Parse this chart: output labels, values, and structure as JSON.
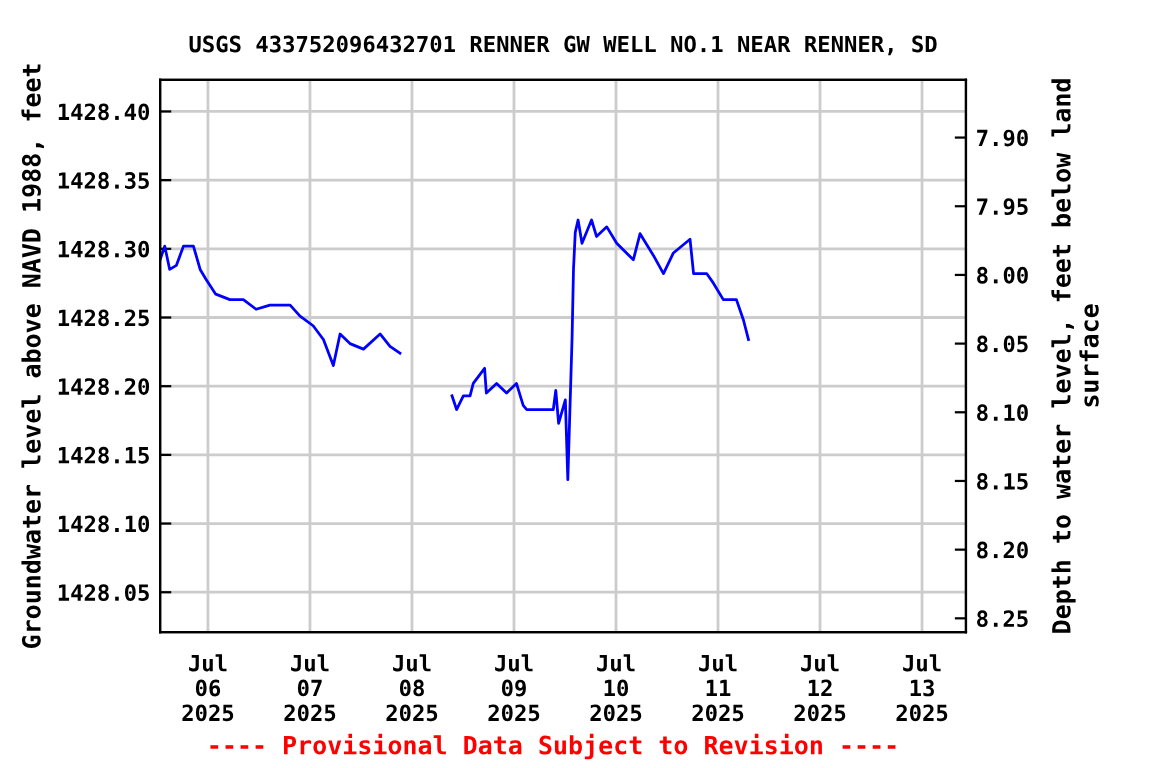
{
  "chart_data": {
    "type": "line",
    "title": "USGS 433752096432701 RENNER GW WELL NO.1 NEAR RENNER, SD",
    "ylabel": "Groundwater level above NAVD 1988, feet",
    "y2label": "Depth to water level, feet below land\nsurface",
    "annotations": [
      "---- Provisional Data Subject to Revision ----"
    ],
    "x": [
      "2025-07-05T12:45",
      "2025-07-05T13:50",
      "2025-07-05T15:00",
      "2025-07-05T16:35",
      "2025-07-05T18:15",
      "2025-07-05T20:35",
      "2025-07-05T22:10",
      "2025-07-05T23:30",
      "2025-07-06T01:50",
      "2025-07-06T05:10",
      "2025-07-06T08:20",
      "2025-07-06T11:20",
      "2025-07-06T14:35",
      "2025-07-06T19:20",
      "2025-07-06T21:40",
      "2025-07-07T00:45",
      "2025-07-07T03:10",
      "2025-07-07T05:30",
      "2025-07-07T07:05",
      "2025-07-07T09:25",
      "2025-07-07T12:35",
      "2025-07-07T16:30",
      "2025-07-07T18:50",
      "2025-07-07T21:10",
      "2025-07-08T03:00",
      "2025-07-08T09:25",
      "2025-07-08T10:30",
      "2025-07-08T12:05",
      "2025-07-08T13:40",
      "2025-07-08T14:25",
      "2025-07-08T17:05",
      "2025-07-08T17:30",
      "2025-07-08T19:55",
      "2025-07-08T22:15",
      "2025-07-09T00:35",
      "2025-07-09T02:10",
      "2025-07-09T03:00",
      "2025-07-09T09:15",
      "2025-07-09T09:50",
      "2025-07-09T10:30",
      "2025-07-09T12:05",
      "2025-07-09T12:40",
      "2025-07-09T13:40",
      "2025-07-09T14:00",
      "2025-07-09T14:25",
      "2025-07-09T15:05",
      "2025-07-09T16:00",
      "2025-07-09T18:15",
      "2025-07-09T19:25",
      "2025-07-09T21:50",
      "2025-07-10T00:10",
      "2025-07-10T04:05",
      "2025-07-10T05:40",
      "2025-07-10T08:50",
      "2025-07-10T11:10",
      "2025-07-10T13:30",
      "2025-07-10T17:25",
      "2025-07-10T18:15",
      "2025-07-10T21:20",
      "2025-07-10T22:55",
      "2025-07-11T01:15",
      "2025-07-11T04:20",
      "2025-07-11T06:00",
      "2025-07-11T07:10"
    ],
    "series": [
      {
        "color": "#0000ff",
        "values": [
          1428.292,
          1428.302,
          1428.285,
          1428.288,
          1428.302,
          1428.302,
          1428.285,
          1428.278,
          1428.267,
          1428.263,
          1428.263,
          1428.256,
          1428.259,
          1428.259,
          1428.251,
          1428.244,
          1428.234,
          1428.215,
          1428.238,
          1428.231,
          1428.227,
          1428.238,
          1428.229,
          1428.224,
          null,
          1428.193,
          1428.183,
          1428.193,
          1428.193,
          1428.202,
          1428.213,
          1428.195,
          1428.202,
          1428.195,
          1428.202,
          1428.186,
          1428.183,
          1428.183,
          1428.197,
          1428.173,
          1428.19,
          1428.132,
          1428.235,
          1428.285,
          1428.312,
          1428.321,
          1428.304,
          1428.321,
          1428.309,
          1428.316,
          1428.304,
          1428.292,
          1428.311,
          1428.295,
          1428.282,
          1428.297,
          1428.307,
          1428.282,
          1428.282,
          1428.275,
          1428.263,
          1428.263,
          1428.248,
          1428.234
        ]
      }
    ],
    "xlim": [
      "2025-07-05T12:45",
      "2025-07-13T10:20"
    ],
    "xticks": [
      {
        "value": "2025-07-06",
        "label": "Jul\n06\n2025"
      },
      {
        "value": "2025-07-07",
        "label": "Jul\n07\n2025"
      },
      {
        "value": "2025-07-08",
        "label": "Jul\n08\n2025"
      },
      {
        "value": "2025-07-09",
        "label": "Jul\n09\n2025"
      },
      {
        "value": "2025-07-10",
        "label": "Jul\n10\n2025"
      },
      {
        "value": "2025-07-11",
        "label": "Jul\n11\n2025"
      },
      {
        "value": "2025-07-12",
        "label": "Jul\n12\n2025"
      },
      {
        "value": "2025-07-13",
        "label": "Jul\n13\n2025"
      }
    ],
    "ylim": [
      1428.021,
      1428.423
    ],
    "yticks": [
      {
        "value": 1428.05,
        "label": "1428.05"
      },
      {
        "value": 1428.1,
        "label": "1428.10"
      },
      {
        "value": 1428.15,
        "label": "1428.15"
      },
      {
        "value": 1428.2,
        "label": "1428.20"
      },
      {
        "value": 1428.25,
        "label": "1428.25"
      },
      {
        "value": 1428.3,
        "label": "1428.30"
      },
      {
        "value": 1428.35,
        "label": "1428.35"
      },
      {
        "value": 1428.4,
        "label": "1428.40"
      }
    ],
    "y2lim": [
      8.26,
      7.858
    ],
    "y2ticks": [
      {
        "value": 7.9,
        "label": "7.90"
      },
      {
        "value": 7.95,
        "label": "7.95"
      },
      {
        "value": 8.0,
        "label": "8.00"
      },
      {
        "value": 8.05,
        "label": "8.05"
      },
      {
        "value": 8.1,
        "label": "8.10"
      },
      {
        "value": 8.15,
        "label": "8.15"
      },
      {
        "value": 8.2,
        "label": "8.20"
      },
      {
        "value": 8.25,
        "label": "8.25"
      }
    ],
    "grid": true
  }
}
